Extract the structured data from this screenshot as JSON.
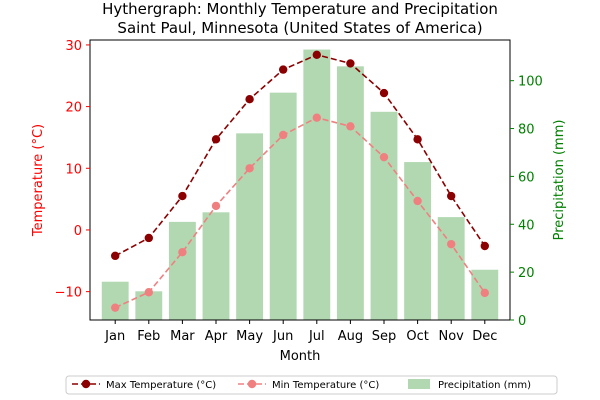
{
  "chart_data": {
    "type": "bar",
    "title": "Hythergraph: Monthly Temperature and Precipitation",
    "subtitle": "Saint Paul, Minnesota (United States of America)",
    "xlabel": "Month",
    "ylabel_left": "Temperature (°C)",
    "ylabel_right": "Precipitation (mm)",
    "categories": [
      "Jan",
      "Feb",
      "Mar",
      "Apr",
      "May",
      "Jun",
      "Jul",
      "Aug",
      "Sep",
      "Oct",
      "Nov",
      "Dec"
    ],
    "ylim_left": [
      -14.6,
      30.8
    ],
    "ylim_right": [
      0,
      117
    ],
    "yticks_left": [
      -10,
      0,
      10,
      20,
      30
    ],
    "yticks_right": [
      0,
      20,
      40,
      60,
      80,
      100
    ],
    "series": [
      {
        "name": "Max Temperature (°C)",
        "kind": "line",
        "axis": "left",
        "color": "#8b0000",
        "linestyle": "dashed",
        "values": [
          -4.2,
          -1.3,
          5.5,
          14.7,
          21.2,
          26.0,
          28.4,
          27.0,
          22.2,
          14.7,
          5.5,
          -2.6
        ]
      },
      {
        "name": "Min Temperature (°C)",
        "kind": "line",
        "axis": "left",
        "color": "#f08080",
        "linestyle": "dashed",
        "values": [
          -12.6,
          -10.1,
          -3.6,
          3.9,
          10.0,
          15.4,
          18.2,
          16.8,
          11.8,
          4.7,
          -2.3,
          -10.2
        ]
      },
      {
        "name": "Precipitation (mm)",
        "kind": "bar",
        "axis": "right",
        "color": "#b2d8b2",
        "values": [
          16,
          12,
          41,
          45,
          78,
          95,
          113,
          106,
          87,
          66,
          43,
          21
        ]
      }
    ],
    "legend_position": "bottom",
    "grid": false
  }
}
